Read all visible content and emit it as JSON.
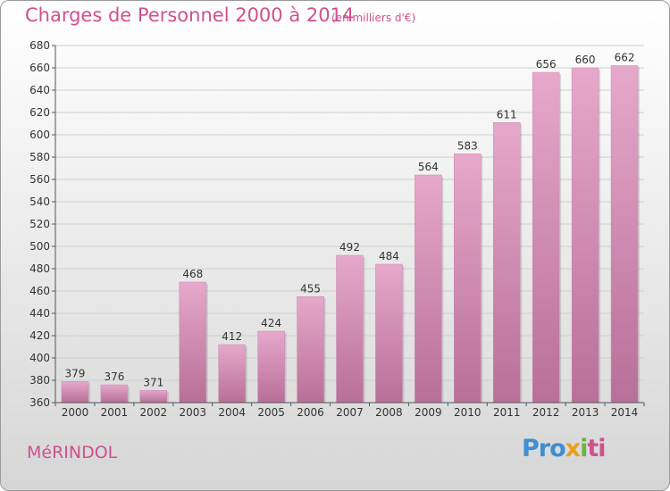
{
  "header": {
    "title": "Charges de Personnel 2000 à 2014",
    "subtitle": "(en milliers d'€)"
  },
  "footer": {
    "city": "MéRINDOL",
    "logo": {
      "part1": "Pro",
      "part2": "x",
      "part3": "i",
      "part4": "ti"
    }
  },
  "colors": {
    "accent": "#d0508f",
    "bar_top": "#e6a8cb",
    "bar_bottom": "#b86f98",
    "axis": "#555555",
    "grid": "#cfcfcf"
  },
  "chart_data": {
    "type": "bar",
    "title": "Charges de Personnel 2000 à 2014",
    "subtitle": "(en milliers d'€)",
    "categories": [
      "2000",
      "2001",
      "2002",
      "2003",
      "2004",
      "2005",
      "2006",
      "2007",
      "2008",
      "2009",
      "2010",
      "2011",
      "2012",
      "2013",
      "2014"
    ],
    "values": [
      379,
      376,
      371,
      468,
      412,
      424,
      455,
      492,
      484,
      564,
      583,
      611,
      656,
      660,
      662
    ],
    "ylim": [
      360,
      680
    ],
    "yticks": [
      360,
      380,
      400,
      420,
      440,
      460,
      480,
      500,
      520,
      540,
      560,
      580,
      600,
      620,
      640,
      660,
      680
    ],
    "grid": true,
    "show_value_labels": true
  }
}
